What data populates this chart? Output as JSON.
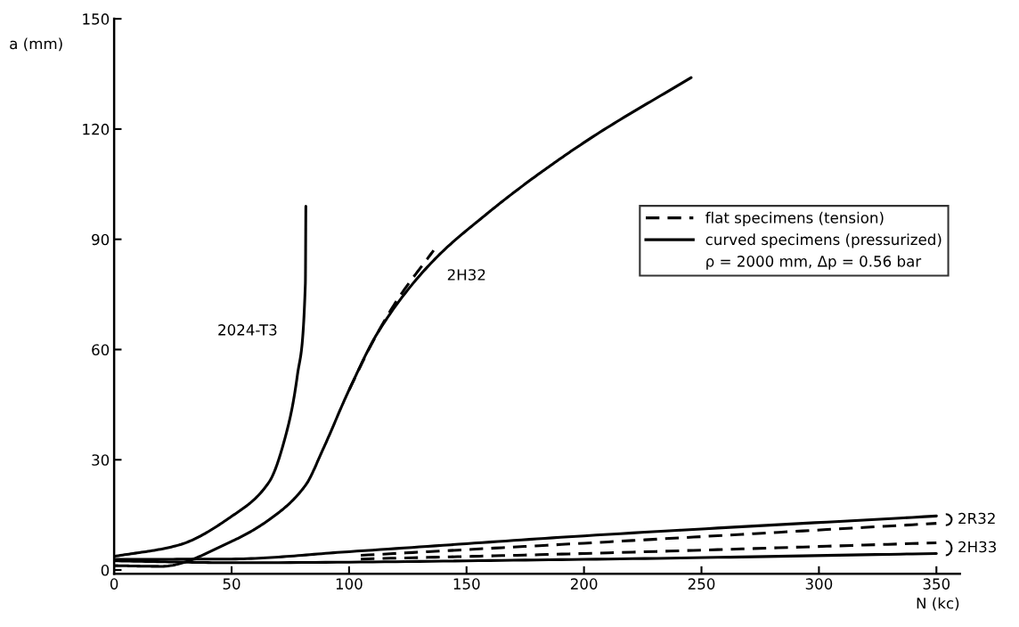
{
  "chart_data": {
    "type": "line",
    "xlabel": "N (kc)",
    "ylabel": "a (mm)",
    "xlim": [
      0,
      360
    ],
    "ylim": [
      -1,
      150
    ],
    "xticks": [
      0,
      50,
      100,
      150,
      200,
      250,
      300,
      350
    ],
    "yticks": [
      0,
      30,
      60,
      90,
      120,
      150
    ],
    "grid": false,
    "legend": "right",
    "marker": "none",
    "series": [
      {
        "x": [
          100,
          110,
          120,
          136
        ],
        "values": [
          49,
          62,
          73,
          87
        ],
        "color": "#000000",
        "line_style": "dashed"
      },
      {
        "name": "2024-T3",
        "x": [
          0,
          27,
          50,
          66,
          73.6,
          78,
          81.4,
          81.6
        ],
        "values": [
          3.7,
          6.7,
          14.6,
          24,
          38,
          53,
          78,
          99
        ],
        "color": "#000000",
        "line_style": "solid"
      },
      {
        "name": "2H32",
        "x": [
          0,
          20,
          50,
          66,
          81.4,
          89,
          100,
          112.6,
          135.6,
          158.8,
          178,
          204,
          245.6
        ],
        "values": [
          1.2,
          1,
          7.8,
          13.7,
          23,
          33,
          49,
          65,
          84,
          97,
          106.5,
          118,
          134
        ],
        "color": "#000000",
        "line_style": "solid"
      },
      {
        "name": "2R32",
        "x": [
          0,
          50,
          100,
          200,
          350
        ],
        "values": [
          2.9,
          3,
          5,
          9.3,
          14.7
        ],
        "color": "#000000",
        "line_style": "solid"
      },
      {
        "x": [
          105,
          200,
          350
        ],
        "values": [
          4,
          7.3,
          12.7
        ],
        "color": "#000000",
        "line_style": "dashed"
      },
      {
        "x": [
          105,
          200,
          350
        ],
        "values": [
          3,
          4.5,
          7.4
        ],
        "color": "#000000",
        "line_style": "dashed"
      },
      {
        "name": "2H33",
        "x": [
          0,
          50,
          200,
          350
        ],
        "values": [
          2.5,
          2,
          2.9,
          4.5
        ],
        "color": "#000000",
        "line_style": "solid"
      }
    ],
    "annotations": [
      "flat specimens (tension)",
      "curved specimens (pressurized)",
      "ρ = 2000 mm, Δp = 0.56 bar"
    ]
  }
}
